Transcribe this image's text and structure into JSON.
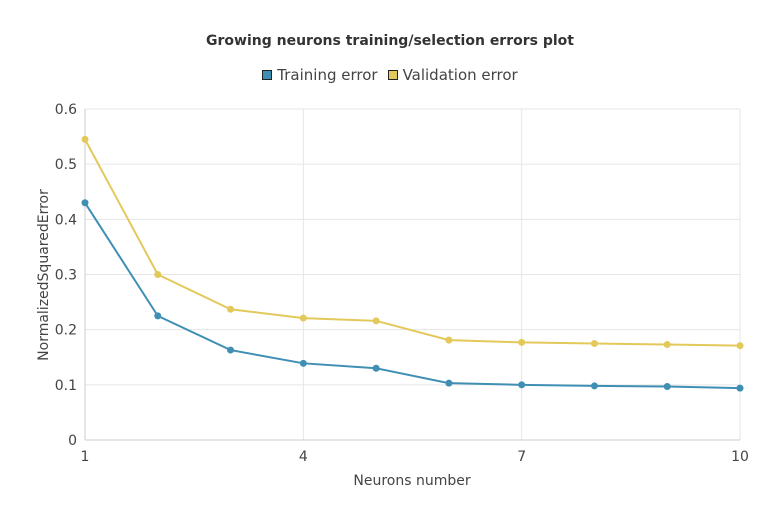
{
  "chart_data": {
    "type": "line",
    "title": "Growing neurons training/selection errors plot",
    "xlabel": "Neurons number",
    "ylabel": "NormalizedSquaredError",
    "x": [
      1,
      2,
      3,
      4,
      5,
      6,
      7,
      8,
      9,
      10
    ],
    "xlim": [
      1,
      10
    ],
    "ylim": [
      0,
      0.6
    ],
    "x_ticks": [
      "1",
      "4",
      "7",
      "10"
    ],
    "y_ticks": [
      "0",
      "0.1",
      "0.2",
      "0.3",
      "0.4",
      "0.5",
      "0.6"
    ],
    "grid": true,
    "legend_position": "top-center",
    "series": [
      {
        "name": "Training error",
        "color": "#3f8fb5",
        "values": [
          0.43,
          0.225,
          0.163,
          0.139,
          0.13,
          0.103,
          0.1,
          0.098,
          0.097,
          0.094
        ]
      },
      {
        "name": "Validation error",
        "color": "#e3c95a",
        "values": [
          0.545,
          0.3,
          0.237,
          0.221,
          0.216,
          0.181,
          0.177,
          0.175,
          0.173,
          0.171
        ]
      }
    ]
  }
}
